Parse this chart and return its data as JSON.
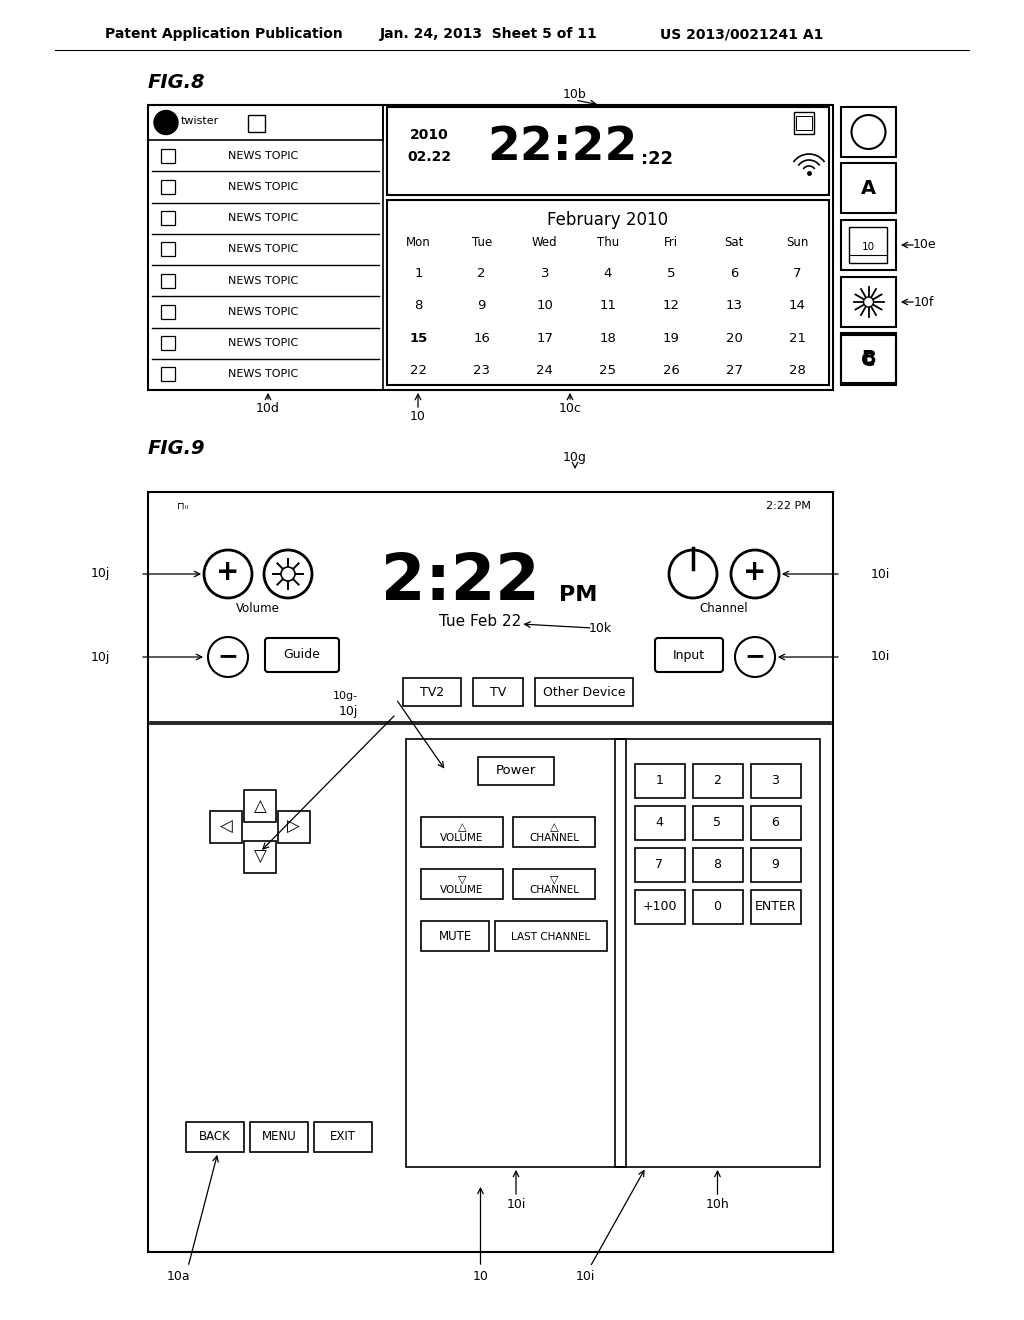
{
  "bg_color": "#ffffff",
  "header_text": "Patent Application Publication",
  "header_date": "Jan. 24, 2013  Sheet 5 of 11",
  "header_patent": "US 2013/0021241 A1",
  "fig8_label": "FIG.8",
  "fig9_label": "FIG.9",
  "calendar_title": "February 2010",
  "calendar_days": [
    "Mon",
    "Tue",
    "Wed",
    "Thu",
    "Fri",
    "Sat",
    "Sun"
  ],
  "calendar_rows": [
    [
      1,
      2,
      3,
      4,
      5,
      6,
      7
    ],
    [
      8,
      9,
      10,
      11,
      12,
      13,
      14
    ],
    [
      15,
      16,
      17,
      18,
      19,
      20,
      21
    ],
    [
      22,
      23,
      24,
      25,
      26,
      27,
      28
    ]
  ],
  "news_items": [
    "NEWS TOPIC",
    "NEWS TOPIC",
    "NEWS TOPIC",
    "NEWS TOPIC",
    "NEWS TOPIC",
    "NEWS TOPIC",
    "NEWS TOPIC",
    "NEWS TOPIC"
  ],
  "fig9_time": "2:22",
  "fig9_time_pm": "PM",
  "fig9_date": "Tue Feb 22",
  "fig9_small_time": "2:22 PM",
  "fig9_src_btns": [
    "TV2",
    "TV",
    "Other Device"
  ],
  "fig9_bottom_left": [
    "BACK",
    "MENU",
    "EXIT"
  ],
  "fig9_vol_ch_up": [
    "△\nVOLUME",
    "△\nCHANNEL"
  ],
  "fig9_vol_ch_dn": [
    "▽\nVOLUME",
    "▽\nCHANNEL"
  ],
  "fig9_bottom_mid": [
    "MUTE",
    "LAST CHANNEL"
  ],
  "fig9_num_grid": [
    [
      1,
      2,
      3
    ],
    [
      4,
      5,
      6
    ],
    [
      7,
      8,
      9
    ],
    [
      "+100",
      0,
      "ENTER"
    ]
  ],
  "fig9_input_btn": "Input",
  "fig9_guide_btn": "Guide"
}
